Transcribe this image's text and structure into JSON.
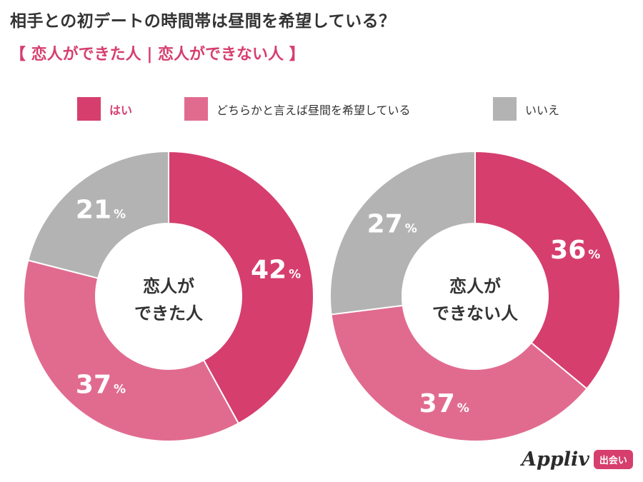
{
  "title": "相手との初デートの時間帯は昼間を希望している？",
  "subtitle": "【 恋人ができた人 | 恋人ができない人 】",
  "legend": [
    {
      "label": "はい",
      "color": "#d63e6e"
    },
    {
      "label": "どちらかと言えば昼間を希望している",
      "color": "#e16b8f"
    },
    {
      "label": "いいえ",
      "color": "#b3b3b3"
    }
  ],
  "chart_data": [
    {
      "type": "pie",
      "title": "",
      "center_label": [
        "恋人が",
        "できた人"
      ],
      "categories": [
        "はい",
        "どちらかと言えば昼間を希望している",
        "いいえ"
      ],
      "values": [
        42,
        37,
        21
      ],
      "unit": "%",
      "colors": [
        "#d63e6e",
        "#e16b8f",
        "#b3b3b3"
      ]
    },
    {
      "type": "pie",
      "title": "",
      "center_label": [
        "恋人が",
        "できない人"
      ],
      "categories": [
        "はい",
        "どちらかと言えば昼間を希望している",
        "いいえ"
      ],
      "values": [
        36,
        37,
        27
      ],
      "unit": "%",
      "colors": [
        "#d63e6e",
        "#e16b8f",
        "#b3b3b3"
      ]
    }
  ],
  "logo": {
    "text": "Appliv",
    "badge": "出会い"
  }
}
